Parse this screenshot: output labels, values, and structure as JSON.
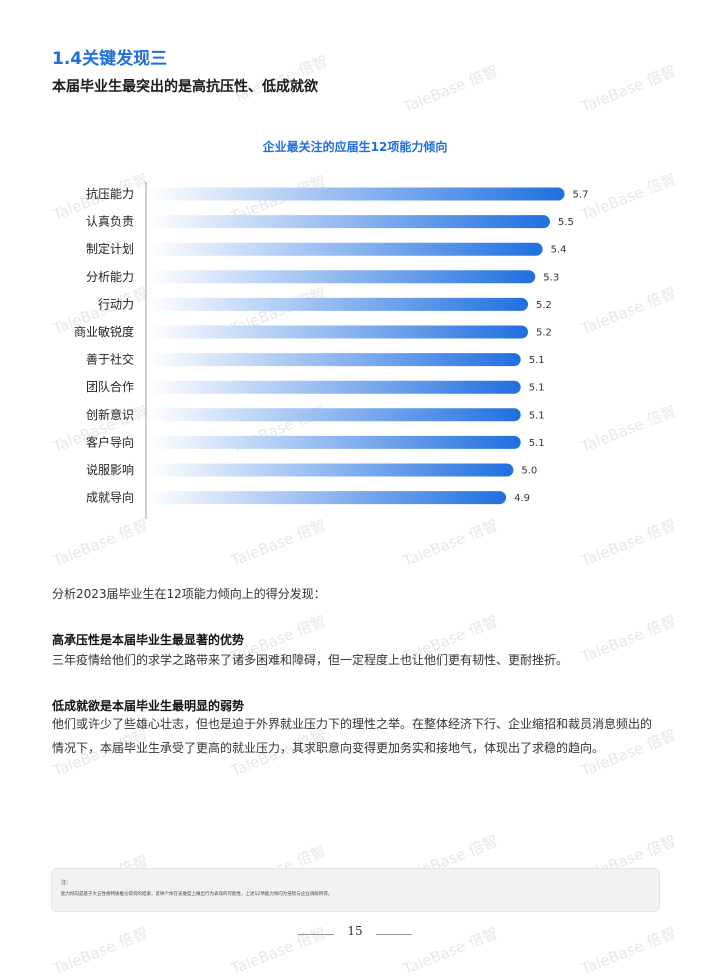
{
  "section": {
    "title": "1.4关键发现三",
    "subtitle": "本届毕业生最突出的是高抗压性、低成就欲"
  },
  "chart_data": {
    "type": "bar",
    "orientation": "horizontal",
    "title": "企业最关注的应届生12项能力倾向",
    "categories": [
      "抗压能力",
      "认真负责",
      "制定计划",
      "分析能力",
      "行动力",
      "商业敏锐度",
      "善于社交",
      "团队合作",
      "创新意识",
      "客户导向",
      "说服影响",
      "成就导向"
    ],
    "values": [
      5.7,
      5.5,
      5.4,
      5.3,
      5.2,
      5.2,
      5.1,
      5.1,
      5.1,
      5.1,
      5.0,
      4.9
    ],
    "value_labels": [
      "5.7",
      "5.5",
      "5.4",
      "5.3",
      "5.2",
      "5.2",
      "5.1",
      "5.1",
      "5.1",
      "5.1",
      "5.0",
      "4.9"
    ],
    "xlim": [
      0,
      5.8
    ],
    "grid": false,
    "bar_color_start": "#ffffff",
    "bar_color_end": "#1f6fe0"
  },
  "body": {
    "intro": "分析2023届毕业生在12项能力倾向上的得分发现：",
    "findings": [
      {
        "heading": "高承压性是本届毕业生最显著的优势",
        "text": "三年疫情给他们的求学之路带来了诸多困难和障碍，但一定程度上也让他们更有韧性、更耐挫折。"
      },
      {
        "heading": "低成就欲是本届毕业生最明显的弱势",
        "text": "他们或许少了些雄心壮志，但也是迫于外界就业压力下的理性之举。在整体经济下行、企业缩招和裁员消息频出的情况下，本届毕业生承受了更高的就业压力，其求职意向变得更加务实和接地气，体现出了求稳的趋向。"
      }
    ]
  },
  "note": {
    "label": "注：",
    "text": "能力倾向是基于大五性格特质推论得到的结果，反映个体在该维度上做出行为表现的可能性，上述12项能力倾向为倍智与企业调研所得。"
  },
  "footer": {
    "page_number": "15"
  },
  "watermark": {
    "text": "TaleBase 倍智",
    "color": "#c9ccd3"
  }
}
